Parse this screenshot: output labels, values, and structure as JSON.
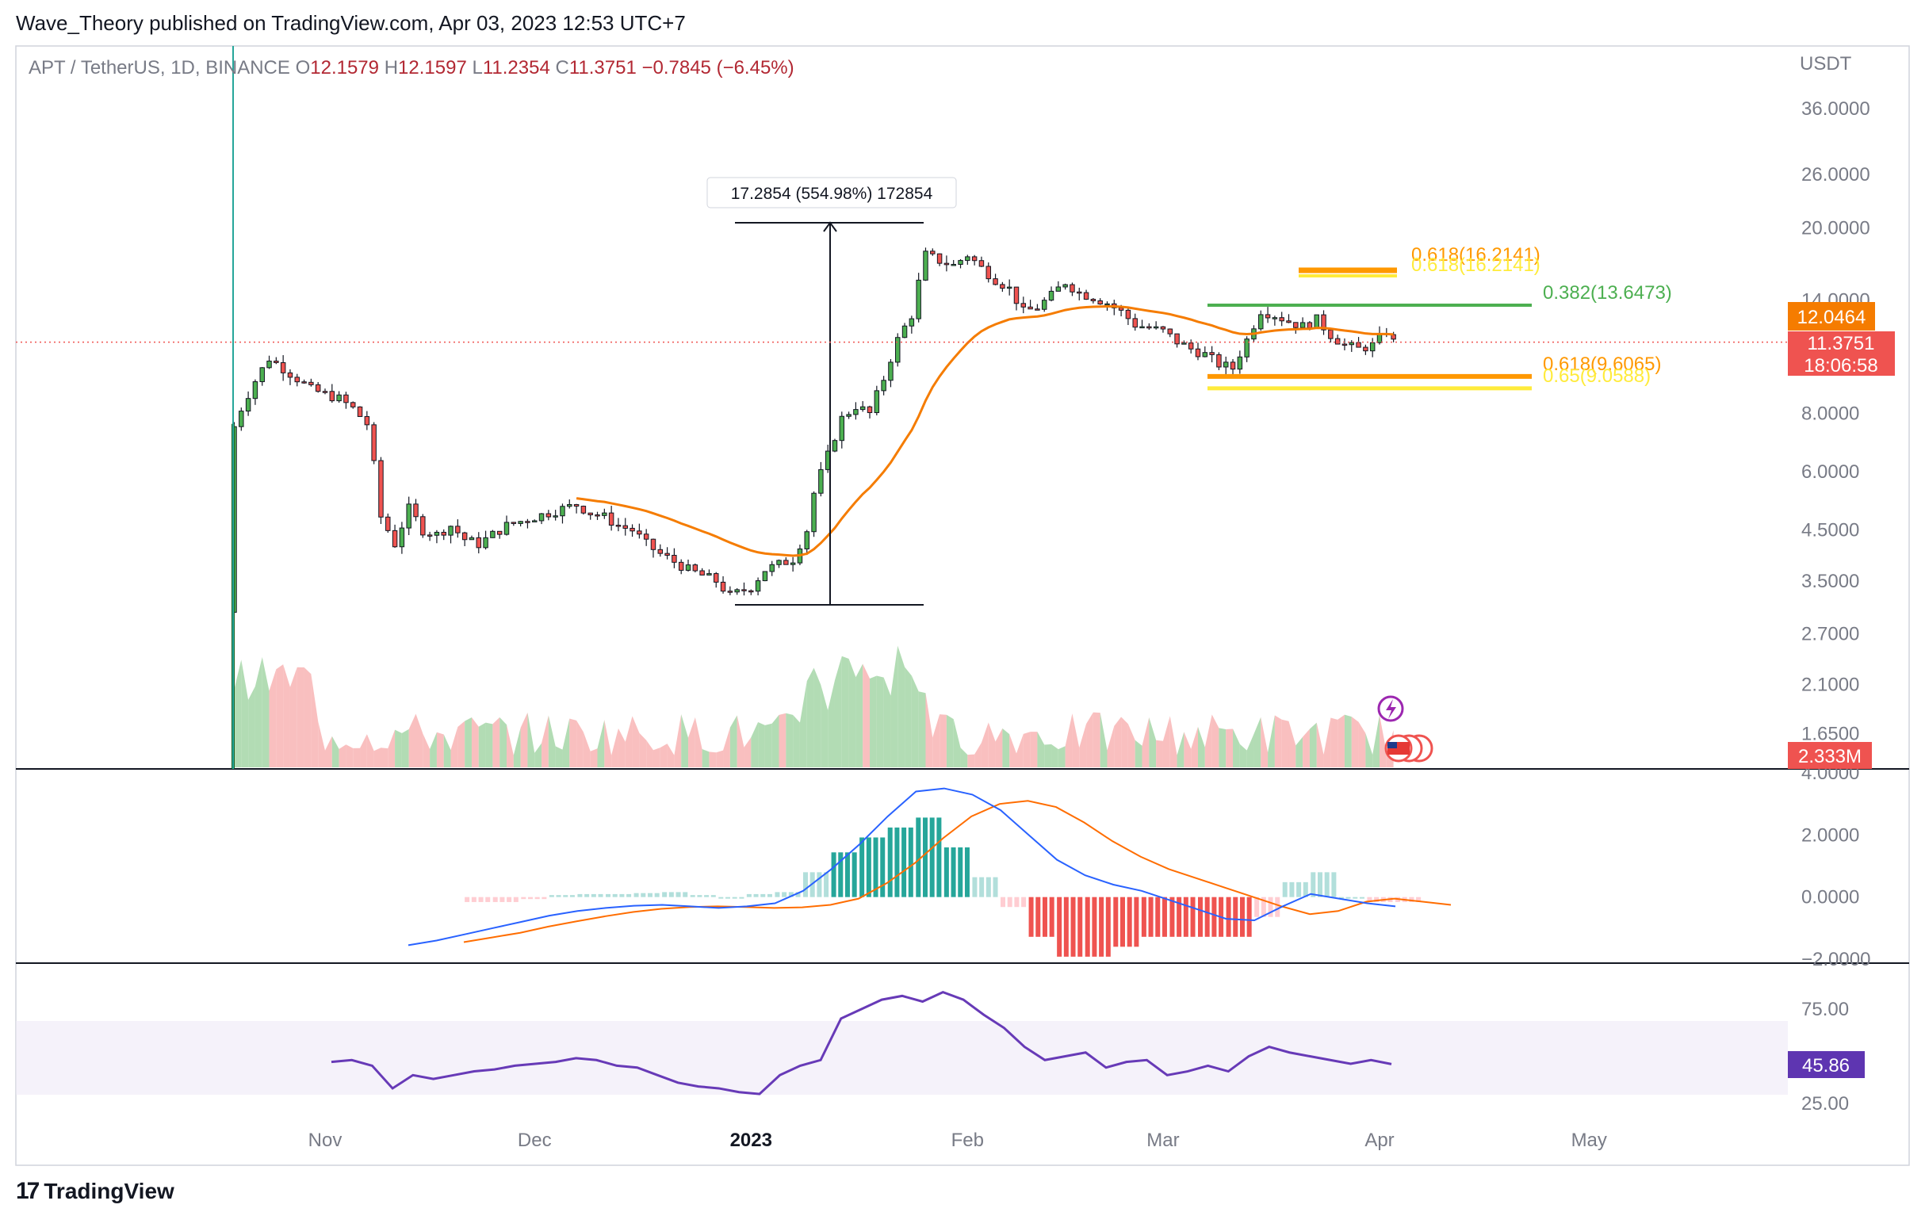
{
  "header": {
    "publisher_line": "Wave_Theory published on TradingView.com, Apr 03, 2023 12:53 UTC+7"
  },
  "footer": {
    "brand": "TradingView"
  },
  "legend": {
    "symbol": "APT / TetherUS, 1D, BINANCE",
    "open_key": "O",
    "open": "12.1579",
    "high_key": "H",
    "high": "12.1597",
    "low_key": "L",
    "low": "11.2354",
    "close_key": "C",
    "close": "11.3751",
    "change": "−0.7845 (−6.45%)"
  },
  "colors": {
    "up": "#26a69a",
    "up_dark": "#1e7d3a",
    "down": "#ef5350",
    "ema": "#f57c00",
    "macd": "#2962ff",
    "signal": "#ff6d00",
    "rsi": "#673ab7",
    "fib_green": "#4caf50",
    "fib_orange": "#ff9800",
    "fib_yellow": "#ffeb3b"
  },
  "chart_data": [
    {
      "type": "candlestick",
      "pair": "APT / TetherUS",
      "interval": "1D",
      "exchange": "BINANCE",
      "y_scale": "log",
      "currency_label": "USDT",
      "y_ticks": [
        "36.0000",
        "26.0000",
        "20.0000",
        "14.0000",
        "8.0000",
        "6.0000",
        "4.5000",
        "3.5000",
        "2.7000",
        "2.1000",
        "1.6500"
      ],
      "x_ticks": [
        "Nov",
        "Dec",
        "2023",
        "Feb",
        "Mar",
        "Apr",
        "May"
      ],
      "x_range": [
        "2022-10-19",
        "2023-05-20"
      ],
      "price_badges": {
        "ema_value": "12.0464",
        "last_price": "11.3751",
        "countdown": "18:06:58",
        "volume": "2.333M"
      },
      "measure_label": "17.2854 (554.98%) 172854",
      "fib_levels": [
        {
          "label": "0.618(16.2141)",
          "value": 16.2141,
          "color": "#ff9800"
        },
        {
          "label": "0.618(16.2141)",
          "value": 16.2141,
          "color": "#ffeb3b"
        },
        {
          "label": "0.382(13.6473)",
          "value": 13.6473,
          "color": "#4caf50"
        },
        {
          "label": "0.618(9.6065)",
          "value": 9.6065,
          "color": "#ff9800"
        },
        {
          "label": "0.65(9.0588)",
          "value": 9.0588,
          "color": "#ffeb3b"
        }
      ],
      "close_series": [
        [
          "2022-10-19",
          7.5
        ],
        [
          "2022-10-20",
          8.2
        ],
        [
          "2022-10-22",
          9.4
        ],
        [
          "2022-10-24",
          10.5
        ],
        [
          "2022-10-26",
          10.0
        ],
        [
          "2022-10-28",
          9.5
        ],
        [
          "2022-10-30",
          9.0
        ],
        [
          "2022-11-01",
          8.8
        ],
        [
          "2022-11-03",
          8.6
        ],
        [
          "2022-11-05",
          8.2
        ],
        [
          "2022-11-07",
          7.6
        ],
        [
          "2022-11-09",
          4.8
        ],
        [
          "2022-11-11",
          4.2
        ],
        [
          "2022-11-13",
          5.0
        ],
        [
          "2022-11-15",
          4.5
        ],
        [
          "2022-11-17",
          4.4
        ],
        [
          "2022-11-19",
          4.6
        ],
        [
          "2022-11-21",
          4.3
        ],
        [
          "2022-11-23",
          4.2
        ],
        [
          "2022-11-25",
          4.4
        ],
        [
          "2022-11-27",
          4.6
        ],
        [
          "2022-11-29",
          4.7
        ],
        [
          "2022-12-01",
          4.8
        ],
        [
          "2022-12-03",
          4.9
        ],
        [
          "2022-12-05",
          5.0
        ],
        [
          "2022-12-07",
          5.1
        ],
        [
          "2022-12-09",
          4.9
        ],
        [
          "2022-12-11",
          4.8
        ],
        [
          "2022-12-13",
          4.6
        ],
        [
          "2022-12-15",
          4.5
        ],
        [
          "2022-12-17",
          4.2
        ],
        [
          "2022-12-19",
          4.0
        ],
        [
          "2022-12-21",
          3.85
        ],
        [
          "2022-12-23",
          3.7
        ],
        [
          "2022-12-25",
          3.6
        ],
        [
          "2022-12-27",
          3.5
        ],
        [
          "2022-12-29",
          3.25
        ],
        [
          "2023-01-01",
          3.4
        ],
        [
          "2023-01-03",
          3.7
        ],
        [
          "2023-01-05",
          3.8
        ],
        [
          "2023-01-07",
          3.9
        ],
        [
          "2023-01-09",
          4.5
        ],
        [
          "2023-01-10",
          5.4
        ],
        [
          "2023-01-12",
          6.5
        ],
        [
          "2023-01-14",
          7.8
        ],
        [
          "2023-01-16",
          8.3
        ],
        [
          "2023-01-18",
          8.0
        ],
        [
          "2023-01-20",
          9.5
        ],
        [
          "2023-01-22",
          11.5
        ],
        [
          "2023-01-24",
          13.0
        ],
        [
          "2023-01-26",
          17.5
        ],
        [
          "2023-01-28",
          17.0
        ],
        [
          "2023-01-30",
          16.6
        ],
        [
          "2023-02-01",
          17.5
        ],
        [
          "2023-02-03",
          16.4
        ],
        [
          "2023-02-05",
          15.5
        ],
        [
          "2023-02-07",
          14.8
        ],
        [
          "2023-02-09",
          13.2
        ],
        [
          "2023-02-11",
          13.5
        ],
        [
          "2023-02-13",
          14.3
        ],
        [
          "2023-02-15",
          15.3
        ],
        [
          "2023-02-17",
          14.5
        ],
        [
          "2023-02-19",
          14.2
        ],
        [
          "2023-02-21",
          13.8
        ],
        [
          "2023-02-23",
          13.2
        ],
        [
          "2023-02-25",
          12.4
        ],
        [
          "2023-02-27",
          12.2
        ],
        [
          "2023-03-01",
          12.0
        ],
        [
          "2023-03-03",
          11.4
        ],
        [
          "2023-03-05",
          11.0
        ],
        [
          "2023-03-07",
          10.7
        ],
        [
          "2023-03-09",
          10.2
        ],
        [
          "2023-03-11",
          10.0
        ],
        [
          "2023-03-13",
          11.5
        ],
        [
          "2023-03-15",
          13.3
        ],
        [
          "2023-03-17",
          13.0
        ],
        [
          "2023-03-19",
          12.6
        ],
        [
          "2023-03-21",
          12.3
        ],
        [
          "2023-03-23",
          12.7
        ],
        [
          "2023-03-25",
          11.8
        ],
        [
          "2023-03-27",
          11.2
        ],
        [
          "2023-03-29",
          11.0
        ],
        [
          "2023-03-31",
          11.2
        ],
        [
          "2023-04-02",
          12.0
        ],
        [
          "2023-04-03",
          11.3751
        ]
      ]
    },
    {
      "type": "line",
      "indicator": "MACD",
      "y_ticks": [
        "4.0000",
        "2.0000",
        "0.0000",
        "-2.0000"
      ],
      "series": [
        {
          "values": [
            -1.55,
            -1.4,
            -1.2,
            -1.0,
            -0.8,
            -0.6,
            -0.45,
            -0.35,
            -0.28,
            -0.25,
            -0.3,
            -0.35,
            -0.3,
            -0.2,
            0.2,
            0.9,
            1.7,
            2.6,
            3.4,
            3.5,
            3.3,
            2.8,
            2.0,
            1.2,
            0.7,
            0.4,
            0.2,
            -0.1,
            -0.4,
            -0.7,
            -0.75,
            -0.3,
            0.1,
            -0.05,
            -0.2,
            -0.3
          ]
        },
        {
          "values": [
            -1.45,
            -1.3,
            -1.15,
            -0.95,
            -0.78,
            -0.62,
            -0.48,
            -0.38,
            -0.32,
            -0.3,
            -0.32,
            -0.35,
            -0.33,
            -0.25,
            -0.05,
            0.45,
            1.1,
            1.9,
            2.6,
            3.0,
            3.1,
            2.9,
            2.4,
            1.8,
            1.3,
            0.9,
            0.6,
            0.3,
            0.0,
            -0.3,
            -0.55,
            -0.45,
            -0.15,
            -0.05,
            -0.15,
            -0.25
          ]
        }
      ]
    },
    {
      "type": "line",
      "indicator": "RSI",
      "y_ticks": [
        "75.00",
        "25.00"
      ],
      "current_value": "45.86",
      "series": [
        {
          "values": [
            47,
            48,
            45,
            33,
            40,
            38,
            40,
            42,
            43,
            45,
            46,
            47,
            49,
            48,
            45,
            44,
            40,
            36,
            34,
            33,
            31,
            30,
            40,
            45,
            48,
            70,
            75,
            80,
            82,
            79,
            84,
            80,
            72,
            65,
            55,
            48,
            50,
            52,
            44,
            47,
            48,
            40,
            42,
            45,
            42,
            50,
            55,
            52,
            50,
            48,
            46,
            48,
            45.86
          ]
        }
      ]
    }
  ]
}
